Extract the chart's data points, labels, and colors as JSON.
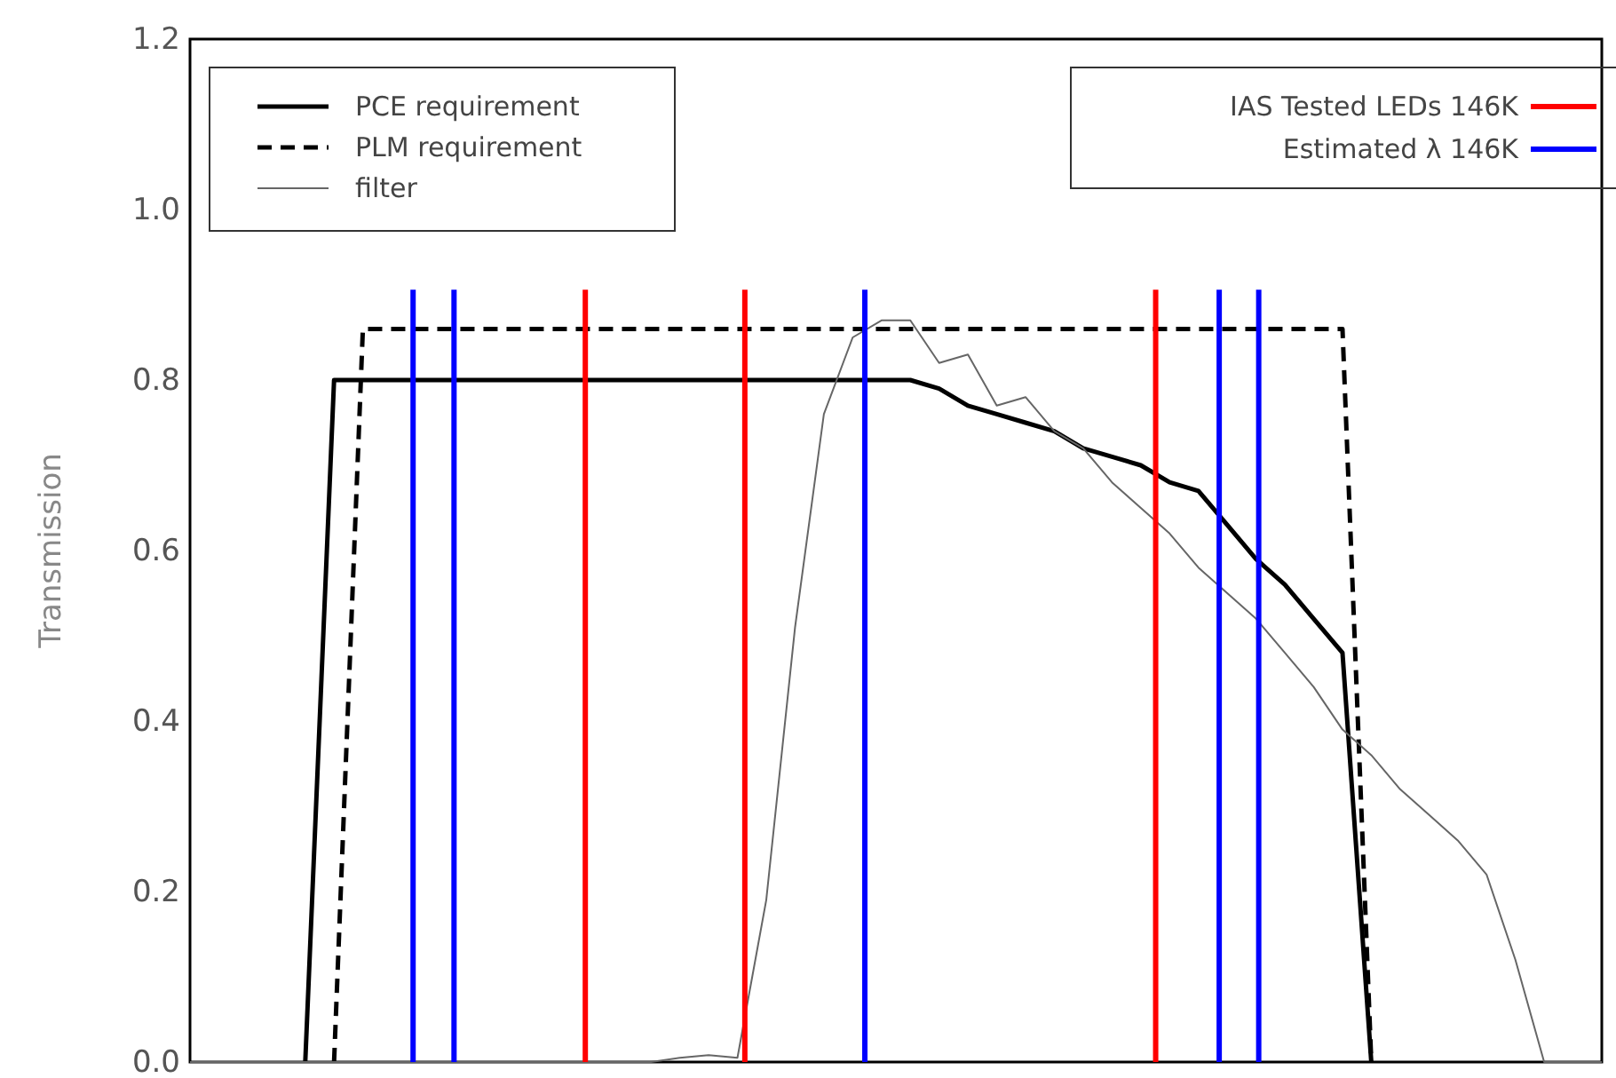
{
  "chart_data": {
    "type": "line",
    "ylabel": "Transmission",
    "categories": [
      null,
      null,
      null,
      null,
      null,
      null,
      null,
      null,
      null,
      null,
      null,
      null,
      null,
      null,
      null,
      null,
      null,
      null,
      null,
      null,
      null,
      null,
      null,
      null,
      null,
      null,
      null,
      null,
      null,
      null,
      null,
      null,
      null,
      null,
      null,
      null,
      null,
      null,
      null,
      null,
      null,
      null,
      null,
      null,
      null,
      null,
      null,
      null,
      null,
      null
    ],
    "ylim": [
      0,
      1.2
    ],
    "yticks": [
      {
        "value": 0,
        "label": "0.0"
      },
      {
        "value": 0.2,
        "label": "0.2"
      },
      {
        "value": 0.4,
        "label": "0.4"
      },
      {
        "value": 0.6,
        "label": "0.6"
      },
      {
        "value": 0.8,
        "label": "0.8"
      },
      {
        "value": 1.0,
        "label": "1.0"
      },
      {
        "value": 1.2,
        "label": "1.2"
      }
    ],
    "tick_labels": "y",
    "grid": false,
    "legend": "top left",
    "marker": "none",
    "series": [
      {
        "name": "PCE requirement",
        "color": "#000000",
        "line_style": "solid",
        "values": [
          null,
          null,
          null,
          null,
          0,
          0.8,
          0.8,
          0.8,
          0.8,
          0.8,
          0.8,
          0.8,
          0.8,
          0.8,
          0.8,
          0.8,
          0.8,
          0.8,
          0.8,
          0.8,
          0.8,
          0.8,
          0.8,
          0.8,
          0.8,
          0.8,
          0.79,
          0.77,
          0.76,
          0.75,
          0.74,
          0.72,
          0.71,
          0.7,
          0.68,
          0.67,
          0.63,
          0.59,
          0.56,
          0.52,
          0.48,
          0,
          null,
          null,
          null,
          null,
          null,
          null,
          null,
          null
        ]
      },
      {
        "name": "PLM requirement",
        "color": "#000000",
        "line_style": "dashed",
        "values": [
          null,
          null,
          null,
          null,
          null,
          0,
          0.86,
          0.86,
          0.86,
          0.86,
          0.86,
          0.86,
          0.86,
          0.86,
          0.86,
          0.86,
          0.86,
          0.86,
          0.86,
          0.86,
          0.86,
          0.86,
          0.86,
          0.86,
          0.86,
          0.86,
          0.86,
          0.86,
          0.86,
          0.86,
          0.86,
          0.86,
          0.86,
          0.86,
          0.86,
          0.86,
          0.86,
          0.86,
          0.86,
          0.86,
          0.86,
          0,
          null,
          null,
          null,
          null,
          null,
          null,
          null,
          null
        ]
      },
      {
        "name": "filter",
        "color": "#666666",
        "line_style": "solid",
        "values": [
          0,
          0,
          0,
          0,
          0,
          0,
          0,
          0,
          0,
          0,
          0,
          0,
          0,
          0,
          0,
          0,
          0,
          0.005,
          0.008,
          0.005,
          0.19,
          0.51,
          0.76,
          0.85,
          0.87,
          0.87,
          0.82,
          0.83,
          0.77,
          0.78,
          0.74,
          0.72,
          0.68,
          0.65,
          0.62,
          0.58,
          0.55,
          0.52,
          0.48,
          0.44,
          0.39,
          0.36,
          0.32,
          0.29,
          0.26,
          0.22,
          0.12,
          0,
          0,
          0
        ]
      }
    ],
    "annotations": [
      "IAS Tested LEDs 146K",
      "Estimated λ 146K"
    ]
  }
}
